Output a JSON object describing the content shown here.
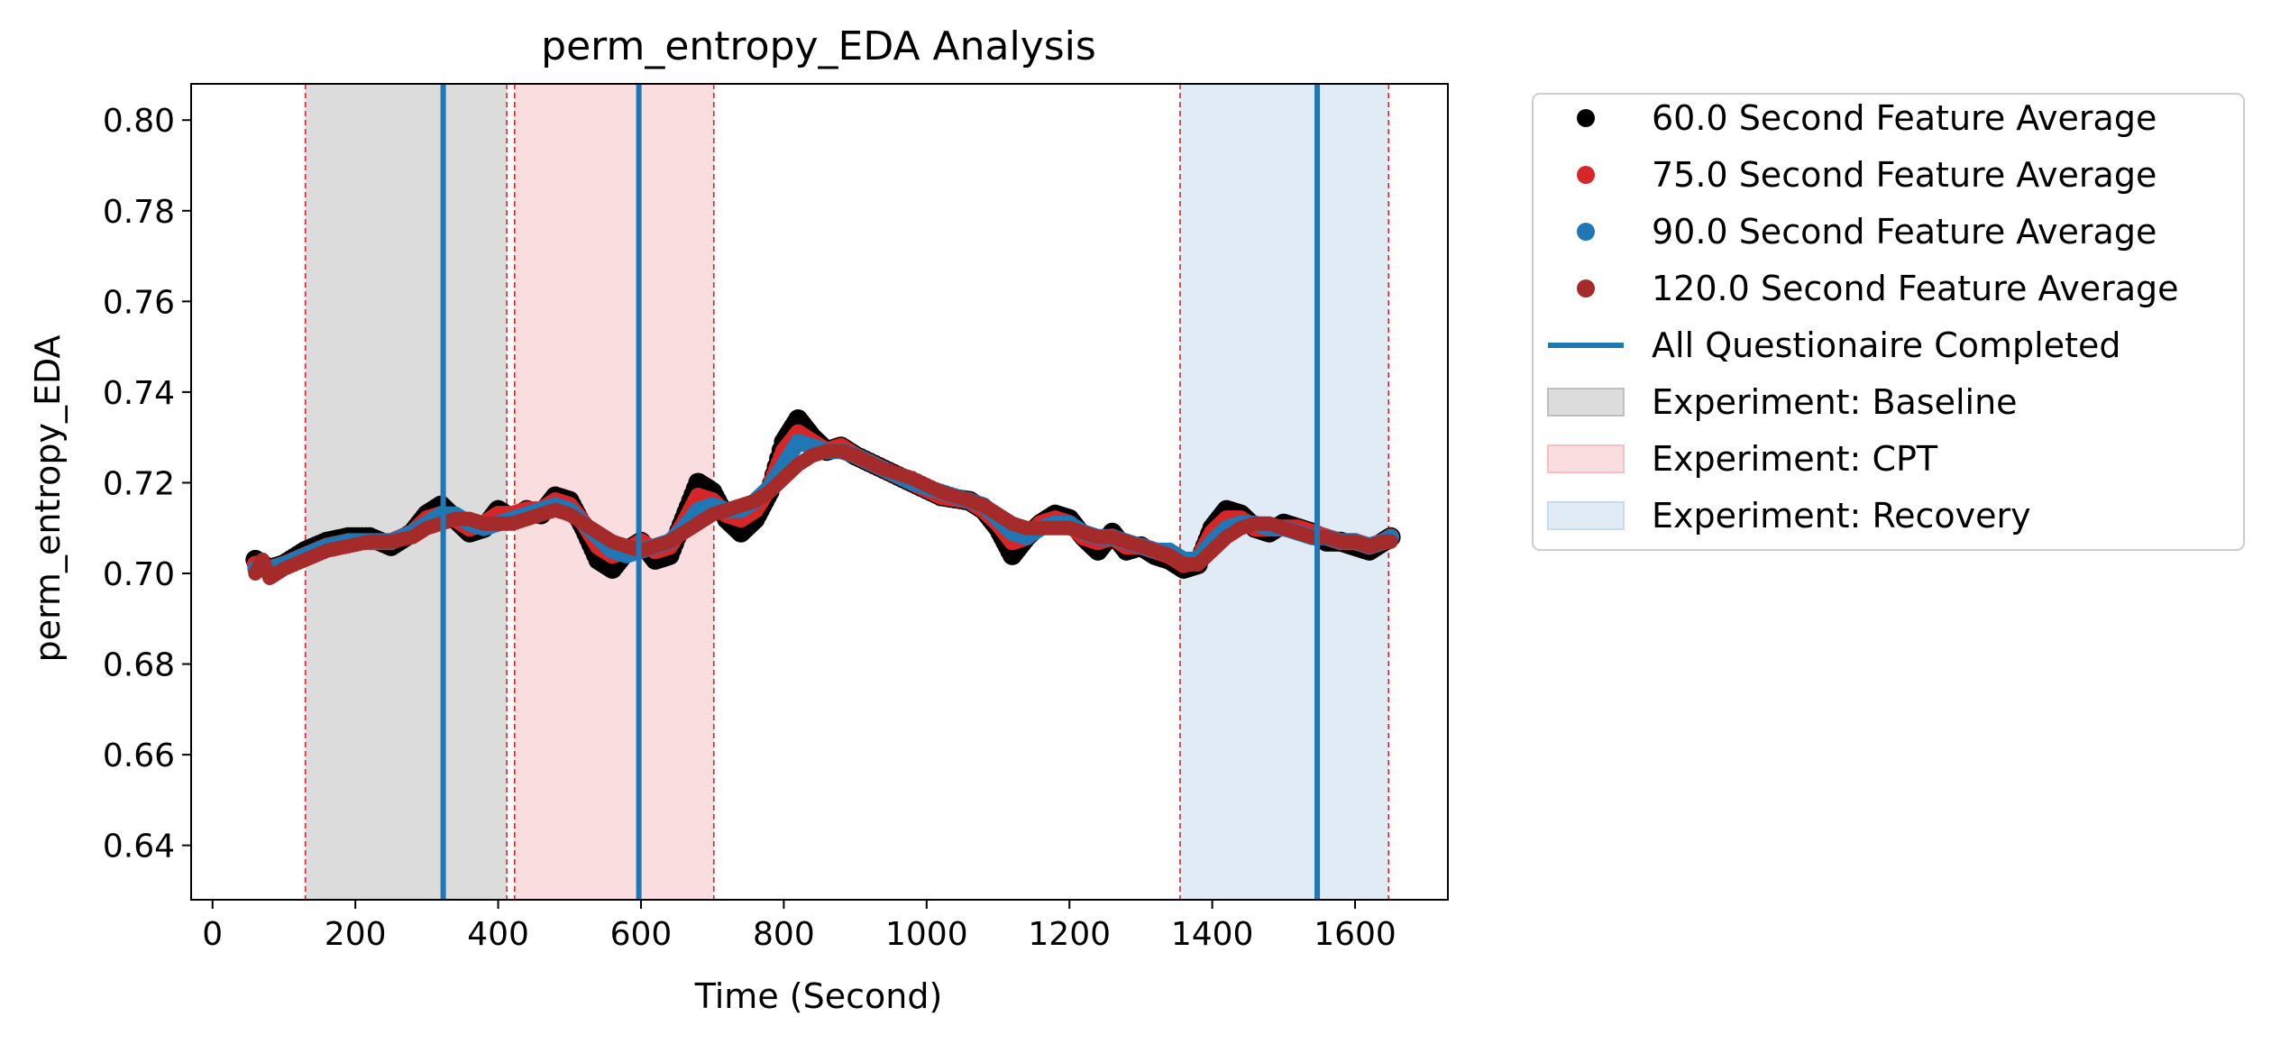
{
  "chart_data": {
    "type": "scatter",
    "title": "perm_entropy_EDA Analysis",
    "xlabel": "Time (Second)",
    "ylabel": "perm_entropy_EDA",
    "xlim": [
      -30,
      1730
    ],
    "ylim": [
      0.628,
      0.808
    ],
    "x_ticks": [
      0,
      200,
      400,
      600,
      800,
      1000,
      1200,
      1400,
      1600
    ],
    "y_ticks": [
      0.64,
      0.66,
      0.68,
      0.7,
      0.72,
      0.74,
      0.76,
      0.78,
      0.8
    ],
    "y_tick_labels": [
      "0.64",
      "0.66",
      "0.68",
      "0.70",
      "0.72",
      "0.74",
      "0.76",
      "0.78",
      "0.80"
    ],
    "grid": false,
    "legend_position": "outside-right",
    "series": [
      {
        "name": "60.0 Second Feature Average",
        "color": "#000000",
        "x": [
          60,
          80,
          100,
          130,
          160,
          190,
          220,
          250,
          280,
          300,
          320,
          340,
          360,
          380,
          400,
          420,
          440,
          460,
          480,
          500,
          520,
          540,
          560,
          580,
          600,
          620,
          640,
          660,
          680,
          700,
          720,
          740,
          760,
          780,
          800,
          820,
          840,
          860,
          880,
          900,
          940,
          980,
          1020,
          1060,
          1080,
          1100,
          1120,
          1140,
          1160,
          1180,
          1200,
          1220,
          1240,
          1260,
          1280,
          1300,
          1320,
          1340,
          1360,
          1380,
          1400,
          1420,
          1440,
          1460,
          1480,
          1500,
          1520,
          1540,
          1560,
          1580,
          1600,
          1620,
          1640,
          1650
        ],
        "y": [
          0.703,
          0.701,
          0.702,
          0.705,
          0.707,
          0.708,
          0.708,
          0.706,
          0.709,
          0.713,
          0.715,
          0.712,
          0.709,
          0.71,
          0.714,
          0.712,
          0.714,
          0.713,
          0.717,
          0.716,
          0.71,
          0.703,
          0.701,
          0.705,
          0.707,
          0.703,
          0.704,
          0.712,
          0.72,
          0.718,
          0.712,
          0.709,
          0.712,
          0.718,
          0.729,
          0.734,
          0.73,
          0.727,
          0.728,
          0.726,
          0.723,
          0.72,
          0.717,
          0.716,
          0.714,
          0.71,
          0.704,
          0.708,
          0.711,
          0.713,
          0.712,
          0.708,
          0.705,
          0.709,
          0.705,
          0.706,
          0.704,
          0.703,
          0.701,
          0.702,
          0.71,
          0.714,
          0.713,
          0.71,
          0.709,
          0.711,
          0.71,
          0.709,
          0.707,
          0.707,
          0.706,
          0.705,
          0.707,
          0.708
        ]
      },
      {
        "name": "75.0 Second Feature Average",
        "color": "#d62728",
        "x": [
          60,
          80,
          100,
          130,
          160,
          190,
          220,
          250,
          280,
          300,
          320,
          340,
          360,
          380,
          400,
          420,
          440,
          460,
          480,
          500,
          520,
          540,
          560,
          580,
          600,
          620,
          640,
          660,
          680,
          700,
          720,
          740,
          760,
          780,
          800,
          820,
          840,
          860,
          880,
          900,
          940,
          980,
          1020,
          1060,
          1080,
          1100,
          1120,
          1140,
          1160,
          1180,
          1200,
          1220,
          1240,
          1260,
          1280,
          1300,
          1320,
          1340,
          1360,
          1380,
          1400,
          1420,
          1440,
          1460,
          1480,
          1500,
          1520,
          1540,
          1560,
          1580,
          1600,
          1620,
          1640,
          1650
        ],
        "y": [
          0.702,
          0.701,
          0.702,
          0.704,
          0.706,
          0.707,
          0.707,
          0.707,
          0.709,
          0.712,
          0.713,
          0.712,
          0.71,
          0.711,
          0.713,
          0.713,
          0.714,
          0.714,
          0.716,
          0.715,
          0.711,
          0.706,
          0.704,
          0.705,
          0.707,
          0.705,
          0.706,
          0.711,
          0.717,
          0.716,
          0.713,
          0.712,
          0.714,
          0.719,
          0.727,
          0.731,
          0.729,
          0.727,
          0.728,
          0.726,
          0.723,
          0.72,
          0.717,
          0.716,
          0.714,
          0.711,
          0.707,
          0.708,
          0.711,
          0.712,
          0.711,
          0.708,
          0.707,
          0.708,
          0.706,
          0.706,
          0.705,
          0.704,
          0.702,
          0.703,
          0.709,
          0.712,
          0.712,
          0.71,
          0.71,
          0.71,
          0.71,
          0.709,
          0.708,
          0.707,
          0.707,
          0.706,
          0.707,
          0.708
        ]
      },
      {
        "name": "90.0 Second Feature Average",
        "color": "#1f77b4",
        "x": [
          60,
          80,
          100,
          130,
          160,
          190,
          220,
          250,
          280,
          300,
          320,
          340,
          360,
          380,
          400,
          420,
          440,
          460,
          480,
          500,
          520,
          540,
          560,
          580,
          600,
          620,
          640,
          660,
          680,
          700,
          720,
          740,
          760,
          780,
          800,
          820,
          840,
          860,
          880,
          900,
          940,
          980,
          1020,
          1060,
          1080,
          1100,
          1120,
          1140,
          1160,
          1180,
          1200,
          1220,
          1240,
          1260,
          1280,
          1300,
          1320,
          1340,
          1360,
          1380,
          1400,
          1420,
          1440,
          1460,
          1480,
          1500,
          1520,
          1540,
          1560,
          1580,
          1600,
          1620,
          1640,
          1650
        ],
        "y": [
          0.701,
          0.701,
          0.702,
          0.704,
          0.706,
          0.707,
          0.707,
          0.707,
          0.709,
          0.711,
          0.713,
          0.713,
          0.711,
          0.71,
          0.711,
          0.712,
          0.713,
          0.714,
          0.715,
          0.714,
          0.711,
          0.708,
          0.705,
          0.704,
          0.705,
          0.706,
          0.707,
          0.71,
          0.714,
          0.715,
          0.714,
          0.714,
          0.716,
          0.719,
          0.724,
          0.729,
          0.728,
          0.727,
          0.727,
          0.726,
          0.723,
          0.72,
          0.718,
          0.716,
          0.715,
          0.712,
          0.709,
          0.708,
          0.71,
          0.711,
          0.711,
          0.709,
          0.708,
          0.708,
          0.707,
          0.706,
          0.705,
          0.705,
          0.703,
          0.703,
          0.707,
          0.71,
          0.711,
          0.711,
          0.71,
          0.71,
          0.709,
          0.708,
          0.708,
          0.707,
          0.707,
          0.706,
          0.707,
          0.708
        ]
      },
      {
        "name": "120.0 Second Feature Average",
        "color": "#a52a2a",
        "x": [
          60,
          70,
          80,
          90,
          100,
          130,
          160,
          190,
          220,
          250,
          280,
          300,
          320,
          340,
          360,
          380,
          400,
          420,
          440,
          460,
          480,
          500,
          520,
          540,
          560,
          580,
          600,
          620,
          640,
          660,
          680,
          700,
          720,
          740,
          760,
          780,
          800,
          820,
          840,
          860,
          880,
          900,
          940,
          980,
          1020,
          1060,
          1080,
          1100,
          1120,
          1140,
          1160,
          1180,
          1200,
          1220,
          1240,
          1260,
          1280,
          1300,
          1320,
          1340,
          1360,
          1380,
          1400,
          1420,
          1440,
          1460,
          1480,
          1500,
          1520,
          1540,
          1560,
          1580,
          1600,
          1620,
          1640,
          1650
        ],
        "y": [
          0.7,
          0.703,
          0.699,
          0.7,
          0.701,
          0.703,
          0.705,
          0.706,
          0.707,
          0.707,
          0.708,
          0.71,
          0.711,
          0.712,
          0.712,
          0.711,
          0.711,
          0.711,
          0.712,
          0.713,
          0.714,
          0.713,
          0.711,
          0.709,
          0.707,
          0.706,
          0.705,
          0.706,
          0.707,
          0.709,
          0.711,
          0.713,
          0.714,
          0.715,
          0.716,
          0.718,
          0.721,
          0.724,
          0.726,
          0.727,
          0.727,
          0.726,
          0.723,
          0.721,
          0.718,
          0.716,
          0.715,
          0.713,
          0.711,
          0.71,
          0.71,
          0.71,
          0.71,
          0.709,
          0.708,
          0.708,
          0.707,
          0.706,
          0.705,
          0.704,
          0.702,
          0.702,
          0.705,
          0.708,
          0.71,
          0.711,
          0.711,
          0.71,
          0.709,
          0.708,
          0.708,
          0.707,
          0.707,
          0.706,
          0.707,
          0.707
        ]
      }
    ],
    "questionnaire_line": {
      "name": "All Questionaire Completed",
      "color": "#1f77b4",
      "x": [
        323,
        597,
        1547
      ]
    },
    "shaded_regions": [
      {
        "name": "Experiment: Baseline",
        "color": "#bfbfbf",
        "x_start": 130,
        "x_end": 412
      },
      {
        "name": "Experiment: CPT",
        "color": "#f4c1c4",
        "x_start": 423,
        "x_end": 702
      },
      {
        "name": "Experiment: Recovery",
        "color": "#c6dbed",
        "x_start": 1355,
        "x_end": 1647
      }
    ],
    "boundary_lines": {
      "color": "#d62728",
      "x": [
        130,
        412,
        423,
        702,
        1355,
        1647
      ]
    }
  }
}
